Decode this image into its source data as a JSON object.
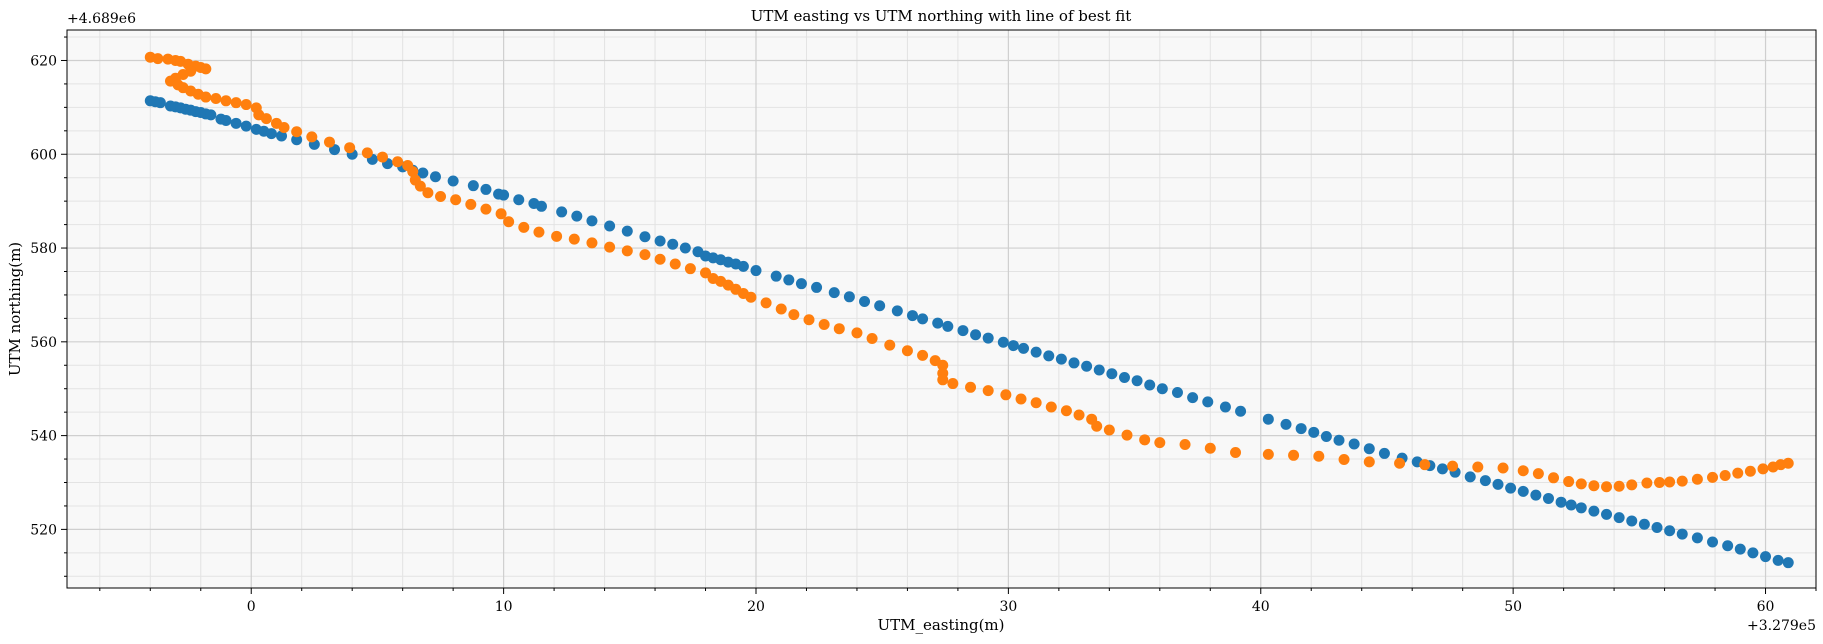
{
  "chart_data": {
    "type": "scatter",
    "title": "UTM easting vs UTM northing with line of best fit",
    "xlabel": "UTM_easting(m)",
    "ylabel": "UTM northing(m)",
    "x_offset_label": "+3.279e5",
    "y_offset_label": "+4.689e6",
    "xlim": [
      -7.3,
      62.0
    ],
    "ylim": [
      507.5,
      626.5
    ],
    "x_ticks": [
      0,
      10,
      20,
      30,
      40,
      50,
      60
    ],
    "y_ticks": [
      520,
      540,
      560,
      580,
      600,
      620
    ],
    "grid": true,
    "legend": "none",
    "series": [
      {
        "color": "#1f77b4",
        "points": [
          [
            -4.0,
            611.4
          ],
          [
            -3.8,
            611.2
          ],
          [
            -3.6,
            611.0
          ],
          [
            -3.2,
            610.3
          ],
          [
            -3.0,
            610.1
          ],
          [
            -2.8,
            609.9
          ],
          [
            -2.6,
            609.6
          ],
          [
            -2.4,
            609.4
          ],
          [
            -2.2,
            609.1
          ],
          [
            -2.0,
            608.9
          ],
          [
            -1.8,
            608.6
          ],
          [
            -1.6,
            608.4
          ],
          [
            -1.2,
            607.5
          ],
          [
            -1.0,
            607.2
          ],
          [
            -0.6,
            606.6
          ],
          [
            -0.2,
            606.0
          ],
          [
            0.2,
            605.3
          ],
          [
            0.5,
            604.9
          ],
          [
            0.8,
            604.4
          ],
          [
            1.2,
            603.9
          ],
          [
            1.8,
            603.1
          ],
          [
            2.5,
            602.1
          ],
          [
            3.3,
            601.0
          ],
          [
            4.0,
            600.0
          ],
          [
            4.8,
            598.9
          ],
          [
            5.4,
            598.0
          ],
          [
            6.0,
            597.3
          ],
          [
            6.4,
            596.6
          ],
          [
            6.8,
            596.0
          ],
          [
            7.3,
            595.2
          ],
          [
            8.0,
            594.3
          ],
          [
            8.8,
            593.3
          ],
          [
            9.3,
            592.5
          ],
          [
            9.8,
            591.5
          ],
          [
            10.0,
            591.3
          ],
          [
            10.6,
            590.3
          ],
          [
            11.2,
            589.5
          ],
          [
            11.5,
            588.9
          ],
          [
            12.3,
            587.7
          ],
          [
            12.9,
            586.8
          ],
          [
            13.5,
            585.8
          ],
          [
            14.2,
            584.7
          ],
          [
            14.9,
            583.6
          ],
          [
            15.6,
            582.4
          ],
          [
            16.2,
            581.5
          ],
          [
            16.7,
            580.8
          ],
          [
            17.2,
            580.0
          ],
          [
            17.7,
            579.2
          ],
          [
            18.0,
            578.3
          ],
          [
            18.3,
            577.9
          ],
          [
            18.6,
            577.5
          ],
          [
            18.9,
            577.0
          ],
          [
            19.2,
            576.6
          ],
          [
            19.5,
            576.1
          ],
          [
            20.0,
            575.2
          ],
          [
            20.8,
            574.0
          ],
          [
            21.3,
            573.2
          ],
          [
            21.8,
            572.4
          ],
          [
            22.4,
            571.6
          ],
          [
            23.1,
            570.5
          ],
          [
            23.7,
            569.6
          ],
          [
            24.3,
            568.6
          ],
          [
            24.9,
            567.7
          ],
          [
            25.6,
            566.6
          ],
          [
            26.2,
            565.6
          ],
          [
            26.6,
            564.9
          ],
          [
            27.2,
            564.0
          ],
          [
            27.6,
            563.3
          ],
          [
            28.2,
            562.4
          ],
          [
            28.7,
            561.5
          ],
          [
            29.2,
            560.8
          ],
          [
            29.8,
            559.9
          ],
          [
            30.2,
            559.2
          ],
          [
            30.6,
            558.6
          ],
          [
            31.1,
            557.8
          ],
          [
            31.6,
            557.0
          ],
          [
            32.1,
            556.3
          ],
          [
            32.6,
            555.5
          ],
          [
            33.1,
            554.8
          ],
          [
            33.6,
            554.0
          ],
          [
            34.1,
            553.2
          ],
          [
            34.6,
            552.4
          ],
          [
            35.1,
            551.7
          ],
          [
            35.6,
            550.8
          ],
          [
            36.1,
            550.0
          ],
          [
            36.7,
            549.2
          ],
          [
            37.3,
            548.1
          ],
          [
            37.9,
            547.2
          ],
          [
            38.6,
            546.1
          ],
          [
            39.2,
            545.2
          ],
          [
            40.3,
            543.5
          ],
          [
            41.0,
            542.4
          ],
          [
            41.6,
            541.5
          ],
          [
            42.1,
            540.7
          ],
          [
            42.6,
            539.8
          ],
          [
            43.1,
            539.0
          ],
          [
            43.7,
            538.2
          ],
          [
            44.3,
            537.2
          ],
          [
            44.9,
            536.2
          ],
          [
            45.6,
            535.2
          ],
          [
            46.2,
            534.4
          ],
          [
            46.7,
            533.6
          ],
          [
            47.2,
            532.9
          ],
          [
            47.7,
            532.2
          ],
          [
            48.3,
            531.2
          ],
          [
            48.9,
            530.4
          ],
          [
            49.4,
            529.6
          ],
          [
            49.9,
            528.8
          ],
          [
            50.4,
            528.1
          ],
          [
            50.9,
            527.3
          ],
          [
            51.4,
            526.6
          ],
          [
            51.9,
            525.8
          ],
          [
            52.3,
            525.2
          ],
          [
            52.7,
            524.6
          ],
          [
            53.2,
            523.9
          ],
          [
            53.7,
            523.2
          ],
          [
            54.2,
            522.5
          ],
          [
            54.7,
            521.8
          ],
          [
            55.2,
            521.1
          ],
          [
            55.7,
            520.4
          ],
          [
            56.2,
            519.7
          ],
          [
            56.7,
            519.0
          ],
          [
            57.3,
            518.2
          ],
          [
            57.9,
            517.3
          ],
          [
            58.5,
            516.5
          ],
          [
            59.0,
            515.8
          ],
          [
            59.5,
            515.0
          ],
          [
            60.0,
            514.2
          ],
          [
            60.5,
            513.4
          ],
          [
            60.9,
            512.9
          ]
        ]
      },
      {
        "color": "#ff7f0e",
        "points": [
          [
            -4.0,
            620.7
          ],
          [
            -3.7,
            620.4
          ],
          [
            -3.3,
            620.3
          ],
          [
            -3.0,
            620.0
          ],
          [
            -2.8,
            619.8
          ],
          [
            -2.5,
            619.2
          ],
          [
            -2.2,
            618.8
          ],
          [
            -2.0,
            618.5
          ],
          [
            -1.8,
            618.2
          ],
          [
            -2.4,
            617.7
          ],
          [
            -2.7,
            617.0
          ],
          [
            -3.0,
            616.2
          ],
          [
            -3.2,
            615.6
          ],
          [
            -2.9,
            614.8
          ],
          [
            -2.7,
            614.2
          ],
          [
            -2.4,
            613.5
          ],
          [
            -2.1,
            612.8
          ],
          [
            -1.8,
            612.2
          ],
          [
            -1.4,
            611.9
          ],
          [
            -1.0,
            611.4
          ],
          [
            -0.6,
            611.0
          ],
          [
            -0.2,
            610.6
          ],
          [
            0.2,
            609.9
          ],
          [
            0.3,
            608.4
          ],
          [
            0.6,
            607.6
          ],
          [
            1.0,
            606.6
          ],
          [
            1.3,
            605.7
          ],
          [
            1.8,
            604.8
          ],
          [
            2.4,
            603.7
          ],
          [
            3.1,
            602.6
          ],
          [
            3.9,
            601.4
          ],
          [
            4.6,
            600.3
          ],
          [
            5.2,
            599.4
          ],
          [
            5.8,
            598.4
          ],
          [
            6.2,
            597.6
          ],
          [
            6.4,
            596.3
          ],
          [
            6.5,
            594.5
          ],
          [
            6.7,
            593.2
          ],
          [
            7.0,
            591.8
          ],
          [
            7.5,
            591.0
          ],
          [
            8.1,
            590.3
          ],
          [
            8.7,
            589.3
          ],
          [
            9.3,
            588.3
          ],
          [
            9.9,
            587.3
          ],
          [
            10.2,
            585.6
          ],
          [
            10.8,
            584.4
          ],
          [
            11.4,
            583.4
          ],
          [
            12.1,
            582.5
          ],
          [
            12.8,
            581.9
          ],
          [
            13.5,
            581.1
          ],
          [
            14.2,
            580.2
          ],
          [
            14.9,
            579.4
          ],
          [
            15.6,
            578.6
          ],
          [
            16.2,
            577.6
          ],
          [
            16.8,
            576.6
          ],
          [
            17.4,
            575.6
          ],
          [
            18.0,
            574.7
          ],
          [
            18.3,
            573.5
          ],
          [
            18.6,
            572.9
          ],
          [
            18.9,
            572.1
          ],
          [
            19.2,
            571.2
          ],
          [
            19.5,
            570.3
          ],
          [
            19.8,
            569.5
          ],
          [
            20.4,
            568.3
          ],
          [
            21.0,
            567.0
          ],
          [
            21.5,
            565.8
          ],
          [
            22.1,
            564.7
          ],
          [
            22.7,
            563.7
          ],
          [
            23.3,
            562.8
          ],
          [
            24.0,
            561.9
          ],
          [
            24.6,
            560.7
          ],
          [
            25.3,
            559.3
          ],
          [
            26.0,
            558.1
          ],
          [
            26.6,
            557.1
          ],
          [
            27.1,
            556.0
          ],
          [
            27.4,
            555.0
          ],
          [
            27.4,
            553.3
          ],
          [
            27.4,
            551.9
          ],
          [
            27.8,
            551.1
          ],
          [
            28.5,
            550.3
          ],
          [
            29.2,
            549.6
          ],
          [
            29.9,
            548.7
          ],
          [
            30.5,
            547.8
          ],
          [
            31.1,
            547.0
          ],
          [
            31.7,
            546.1
          ],
          [
            32.3,
            545.3
          ],
          [
            32.8,
            544.4
          ],
          [
            33.3,
            543.5
          ],
          [
            33.5,
            542.0
          ],
          [
            34.0,
            541.2
          ],
          [
            34.7,
            540.1
          ],
          [
            35.4,
            539.1
          ],
          [
            36.0,
            538.5
          ],
          [
            37.0,
            538.1
          ],
          [
            38.0,
            537.3
          ],
          [
            39.0,
            536.4
          ],
          [
            40.3,
            536.0
          ],
          [
            41.3,
            535.8
          ],
          [
            42.3,
            535.6
          ],
          [
            43.3,
            534.9
          ],
          [
            44.3,
            534.4
          ],
          [
            45.5,
            534.1
          ],
          [
            46.5,
            533.8
          ],
          [
            47.6,
            533.5
          ],
          [
            48.6,
            533.3
          ],
          [
            49.6,
            533.1
          ],
          [
            50.4,
            532.5
          ],
          [
            51.0,
            531.9
          ],
          [
            51.6,
            531.0
          ],
          [
            52.2,
            530.2
          ],
          [
            52.7,
            529.7
          ],
          [
            53.2,
            529.3
          ],
          [
            53.7,
            529.1
          ],
          [
            54.2,
            529.2
          ],
          [
            54.7,
            529.5
          ],
          [
            55.3,
            529.9
          ],
          [
            55.8,
            530.0
          ],
          [
            56.2,
            530.1
          ],
          [
            56.7,
            530.3
          ],
          [
            57.3,
            530.7
          ],
          [
            57.9,
            531.1
          ],
          [
            58.4,
            531.5
          ],
          [
            58.9,
            532.0
          ],
          [
            59.4,
            532.4
          ],
          [
            59.9,
            532.9
          ],
          [
            60.3,
            533.3
          ],
          [
            60.6,
            533.8
          ],
          [
            60.9,
            534.1
          ]
        ]
      }
    ]
  }
}
